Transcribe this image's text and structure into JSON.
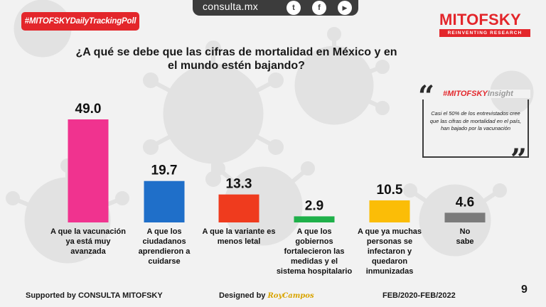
{
  "header": {
    "hashtag": "#MITOFSKYDailyTrackingPoll",
    "site": "consulta.mx",
    "social": [
      {
        "name": "twitter-icon",
        "glyph": "t"
      },
      {
        "name": "facebook-icon",
        "glyph": "f"
      },
      {
        "name": "youtube-icon",
        "glyph": "▶"
      }
    ],
    "logo_name": "MITOFSKY",
    "logo_tagline": "REINVENTING RESEARCH"
  },
  "insight": {
    "title_prefix": "#MITOFSKY",
    "title_suffix": "Insight",
    "text": "Casi el 50% de los entrevistados cree que las cifras de mortalidad en el país, han bajado por la vacunación",
    "quote_open": "“",
    "quote_close": "”"
  },
  "footer": {
    "supported": "Supported by   CONSULTA   MITOFSKY",
    "designed": "Designed by",
    "designer": "RoyCampos",
    "period": "FEB/2020-FEB/2022",
    "page": "9"
  },
  "chart_data": {
    "type": "bar",
    "title": "¿A qué se debe que las cifras de mortalidad en México y en el mundo estén bajando?",
    "xlabel": "",
    "ylabel": "",
    "ylim": [
      0,
      49
    ],
    "categories": [
      "A que la vacunación ya está muy avanzada",
      "A que los ciudadanos aprendieron a cuidarse",
      "A que la variante es menos letal",
      "A que los gobiernos fortalecieron las medidas y el sistema hospitalario",
      "A que ya muchas personas se infectaron y quedaron inmunizadas",
      "No sabe"
    ],
    "category_lines": [
      [
        "A que la vacunación",
        "ya está muy",
        "avanzada"
      ],
      [
        "A que los",
        "ciudadanos",
        "aprendieron a",
        "cuidarse"
      ],
      [
        "A que la variante es",
        "menos letal"
      ],
      [
        "A que los",
        "gobiernos",
        "fortalecieron las",
        "medidas y el",
        "sistema hospitalario"
      ],
      [
        "A que ya muchas",
        "personas se",
        "infectaron y",
        "quedaron",
        "inmunizadas"
      ],
      [
        "No",
        "sabe"
      ]
    ],
    "values": [
      49.0,
      19.7,
      13.3,
      2.9,
      10.5,
      4.6
    ],
    "value_labels": [
      "49.0",
      "19.7",
      "13.3",
      "2.9",
      "10.5",
      "4.6"
    ],
    "colors": [
      "#f0338f",
      "#1f6fc9",
      "#ef3b1e",
      "#1fb04a",
      "#fbbd07",
      "#7b7b7b"
    ]
  }
}
